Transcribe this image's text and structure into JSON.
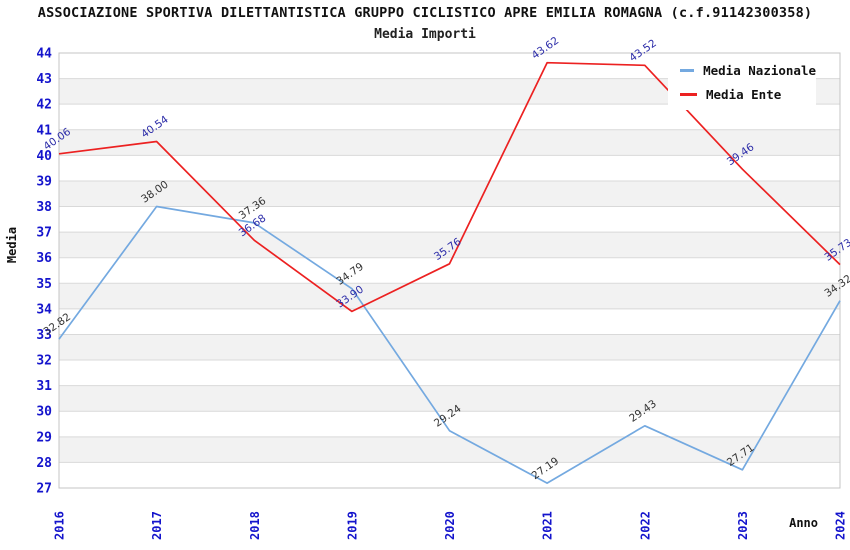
{
  "header": {
    "title": "ASSOCIAZIONE SPORTIVA DILETTANTISTICA GRUPPO CICLISTICO APRE EMILIA ROMAGNA (c.f.91142300358)",
    "subtitle": "Media Importi"
  },
  "chart_data": {
    "type": "line",
    "title": "Media Importi",
    "xlabel": "Anno",
    "ylabel": "Media",
    "ylim": [
      27,
      44
    ],
    "ytick_step": 1,
    "grid": "horizontal",
    "band_fill": "#f2f2f2",
    "gridline_color": "#d9d9d9",
    "border_color": "#c4c4c4",
    "tick_color": "#1414cc",
    "legend_position": "top-right",
    "categories": [
      "2016",
      "2017",
      "2018",
      "2019",
      "2020",
      "2021",
      "2022",
      "2023",
      "2024"
    ],
    "series": [
      {
        "name": "Media Nazionale",
        "color": "#74a9e0",
        "label_color": "#333333",
        "values": [
          32.82,
          38.0,
          37.36,
          34.79,
          29.24,
          27.19,
          29.43,
          27.71,
          34.32
        ]
      },
      {
        "name": "Media Ente",
        "color": "#ec2121",
        "label_color": "#2b2ba8",
        "values": [
          40.06,
          40.54,
          36.68,
          33.9,
          35.76,
          43.62,
          43.52,
          39.46,
          35.73
        ]
      }
    ]
  }
}
